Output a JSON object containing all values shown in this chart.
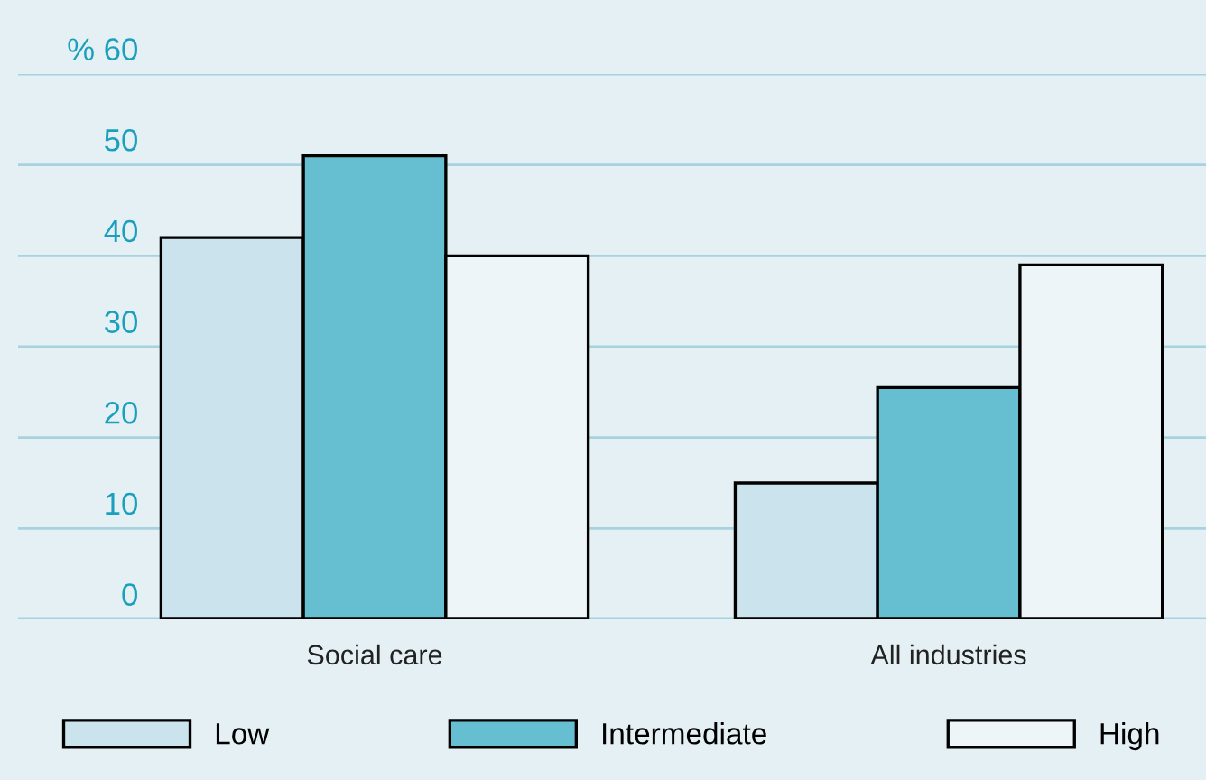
{
  "chart_data": {
    "type": "bar",
    "categories": [
      "Social care",
      "All industries"
    ],
    "series": [
      {
        "name": "Low",
        "color": "#cbe3ec",
        "values": [
          42,
          15
        ]
      },
      {
        "name": "Intermediate",
        "color": "#66bed1",
        "values": [
          51,
          25.5
        ]
      },
      {
        "name": "High",
        "color": "#edf5f8",
        "values": [
          40,
          39
        ]
      }
    ],
    "ylim": [
      0,
      60
    ],
    "yticks": [
      0,
      10,
      20,
      30,
      40,
      50,
      {
        "value": 60,
        "label": "% 60"
      }
    ],
    "grid": "y",
    "legend": "bottom"
  }
}
